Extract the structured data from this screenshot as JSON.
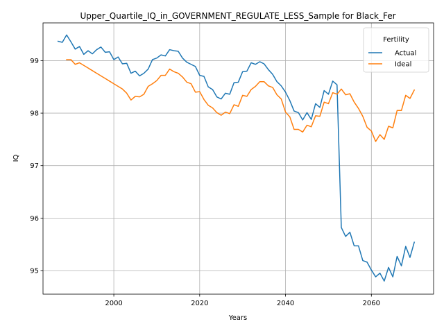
{
  "chart_data": {
    "type": "line",
    "title": "Upper_Quartile_IQ_in_GOVERNMENT_REGULATE_LESS_Sample for Black_Fer",
    "xlabel": "Years",
    "ylabel": "IQ",
    "xlim": [
      1983.5,
      2074.5
    ],
    "ylim": [
      94.55,
      99.72
    ],
    "xticks": [
      2000,
      2020,
      2040,
      2060
    ],
    "yticks": [
      95,
      96,
      97,
      98,
      99
    ],
    "grid": true,
    "legend": {
      "title": "Fertility",
      "placement": "upper right"
    },
    "series": [
      {
        "name": "Actual",
        "color": "#1f77b4",
        "x": [
          1987,
          1988,
          1989,
          1990,
          1991,
          1992,
          1993,
          1994,
          1995,
          1996,
          1997,
          1998,
          1999,
          2000,
          2001,
          2002,
          2003,
          2004,
          2005,
          2006,
          2007,
          2008,
          2009,
          2010,
          2011,
          2012,
          2013,
          2014,
          2015,
          2016,
          2017,
          2018,
          2019,
          2020,
          2021,
          2022,
          2023,
          2024,
          2025,
          2026,
          2027,
          2028,
          2029,
          2030,
          2031,
          2032,
          2033,
          2034,
          2035,
          2036,
          2037,
          2038,
          2039,
          2040,
          2041,
          2042,
          2043,
          2044,
          2045,
          2046,
          2047,
          2048,
          2049,
          2050,
          2051,
          2052,
          2053,
          2054,
          2055,
          2056,
          2057,
          2058,
          2059,
          2060,
          2061,
          2062,
          2063,
          2064,
          2065,
          2066,
          2067,
          2068,
          2069,
          2070
        ],
        "y": [
          99.37,
          99.35,
          99.49,
          99.36,
          99.22,
          99.27,
          99.12,
          99.19,
          99.13,
          99.21,
          99.26,
          99.16,
          99.17,
          99.02,
          99.07,
          98.94,
          98.95,
          98.76,
          98.8,
          98.71,
          98.76,
          98.84,
          99.02,
          99.05,
          99.11,
          99.09,
          99.21,
          99.19,
          99.18,
          99.05,
          98.97,
          98.93,
          98.89,
          98.72,
          98.7,
          98.5,
          98.45,
          98.31,
          98.27,
          98.38,
          98.36,
          98.58,
          98.59,
          98.79,
          98.8,
          98.96,
          98.93,
          98.98,
          98.94,
          98.83,
          98.74,
          98.6,
          98.52,
          98.4,
          98.24,
          98.04,
          98.01,
          97.87,
          98.01,
          97.88,
          98.18,
          98.11,
          98.43,
          98.36,
          98.61,
          98.54,
          95.82,
          95.65,
          95.73,
          95.47,
          95.47,
          95.19,
          95.16,
          95.01,
          94.88,
          94.95,
          94.8,
          95.06,
          94.88,
          95.27,
          95.09,
          95.46,
          95.25,
          95.54
        ]
      },
      {
        "name": "Ideal",
        "color": "#ff7f0e",
        "x": [
          1989,
          1990,
          1991,
          1992,
          1993,
          1994,
          1995,
          1996,
          1997,
          1998,
          1999,
          2000,
          2001,
          2002,
          2003,
          2004,
          2005,
          2006,
          2007,
          2008,
          2009,
          2010,
          2011,
          2012,
          2013,
          2014,
          2015,
          2016,
          2017,
          2018,
          2019,
          2020,
          2021,
          2022,
          2023,
          2024,
          2025,
          2026,
          2027,
          2028,
          2029,
          2030,
          2031,
          2032,
          2033,
          2034,
          2035,
          2036,
          2037,
          2038,
          2039,
          2040,
          2041,
          2042,
          2043,
          2044,
          2045,
          2046,
          2047,
          2048,
          2049,
          2050,
          2051,
          2052,
          2053,
          2054,
          2055,
          2056,
          2057,
          2058,
          2059,
          2060,
          2061,
          2062,
          2063,
          2064,
          2065,
          2066,
          2067,
          2068,
          2069,
          2070
        ],
        "y": [
          99.02,
          99.02,
          98.93,
          98.96,
          98.91,
          98.86,
          98.81,
          98.76,
          98.71,
          98.66,
          98.61,
          98.56,
          98.51,
          98.46,
          98.38,
          98.25,
          98.32,
          98.31,
          98.36,
          98.51,
          98.56,
          98.62,
          98.72,
          98.72,
          98.84,
          98.79,
          98.76,
          98.69,
          98.59,
          98.56,
          98.4,
          98.41,
          98.26,
          98.15,
          98.1,
          98.01,
          97.96,
          98.02,
          97.99,
          98.16,
          98.13,
          98.34,
          98.32,
          98.45,
          98.51,
          98.6,
          98.6,
          98.52,
          98.49,
          98.35,
          98.27,
          98.02,
          97.93,
          97.69,
          97.69,
          97.64,
          97.77,
          97.74,
          97.95,
          97.94,
          98.21,
          98.18,
          98.39,
          98.36,
          98.46,
          98.35,
          98.37,
          98.21,
          98.09,
          97.94,
          97.73,
          97.66,
          97.46,
          97.59,
          97.5,
          97.75,
          97.72,
          98.05,
          98.05,
          98.34,
          98.28,
          98.44
        ]
      }
    ]
  }
}
